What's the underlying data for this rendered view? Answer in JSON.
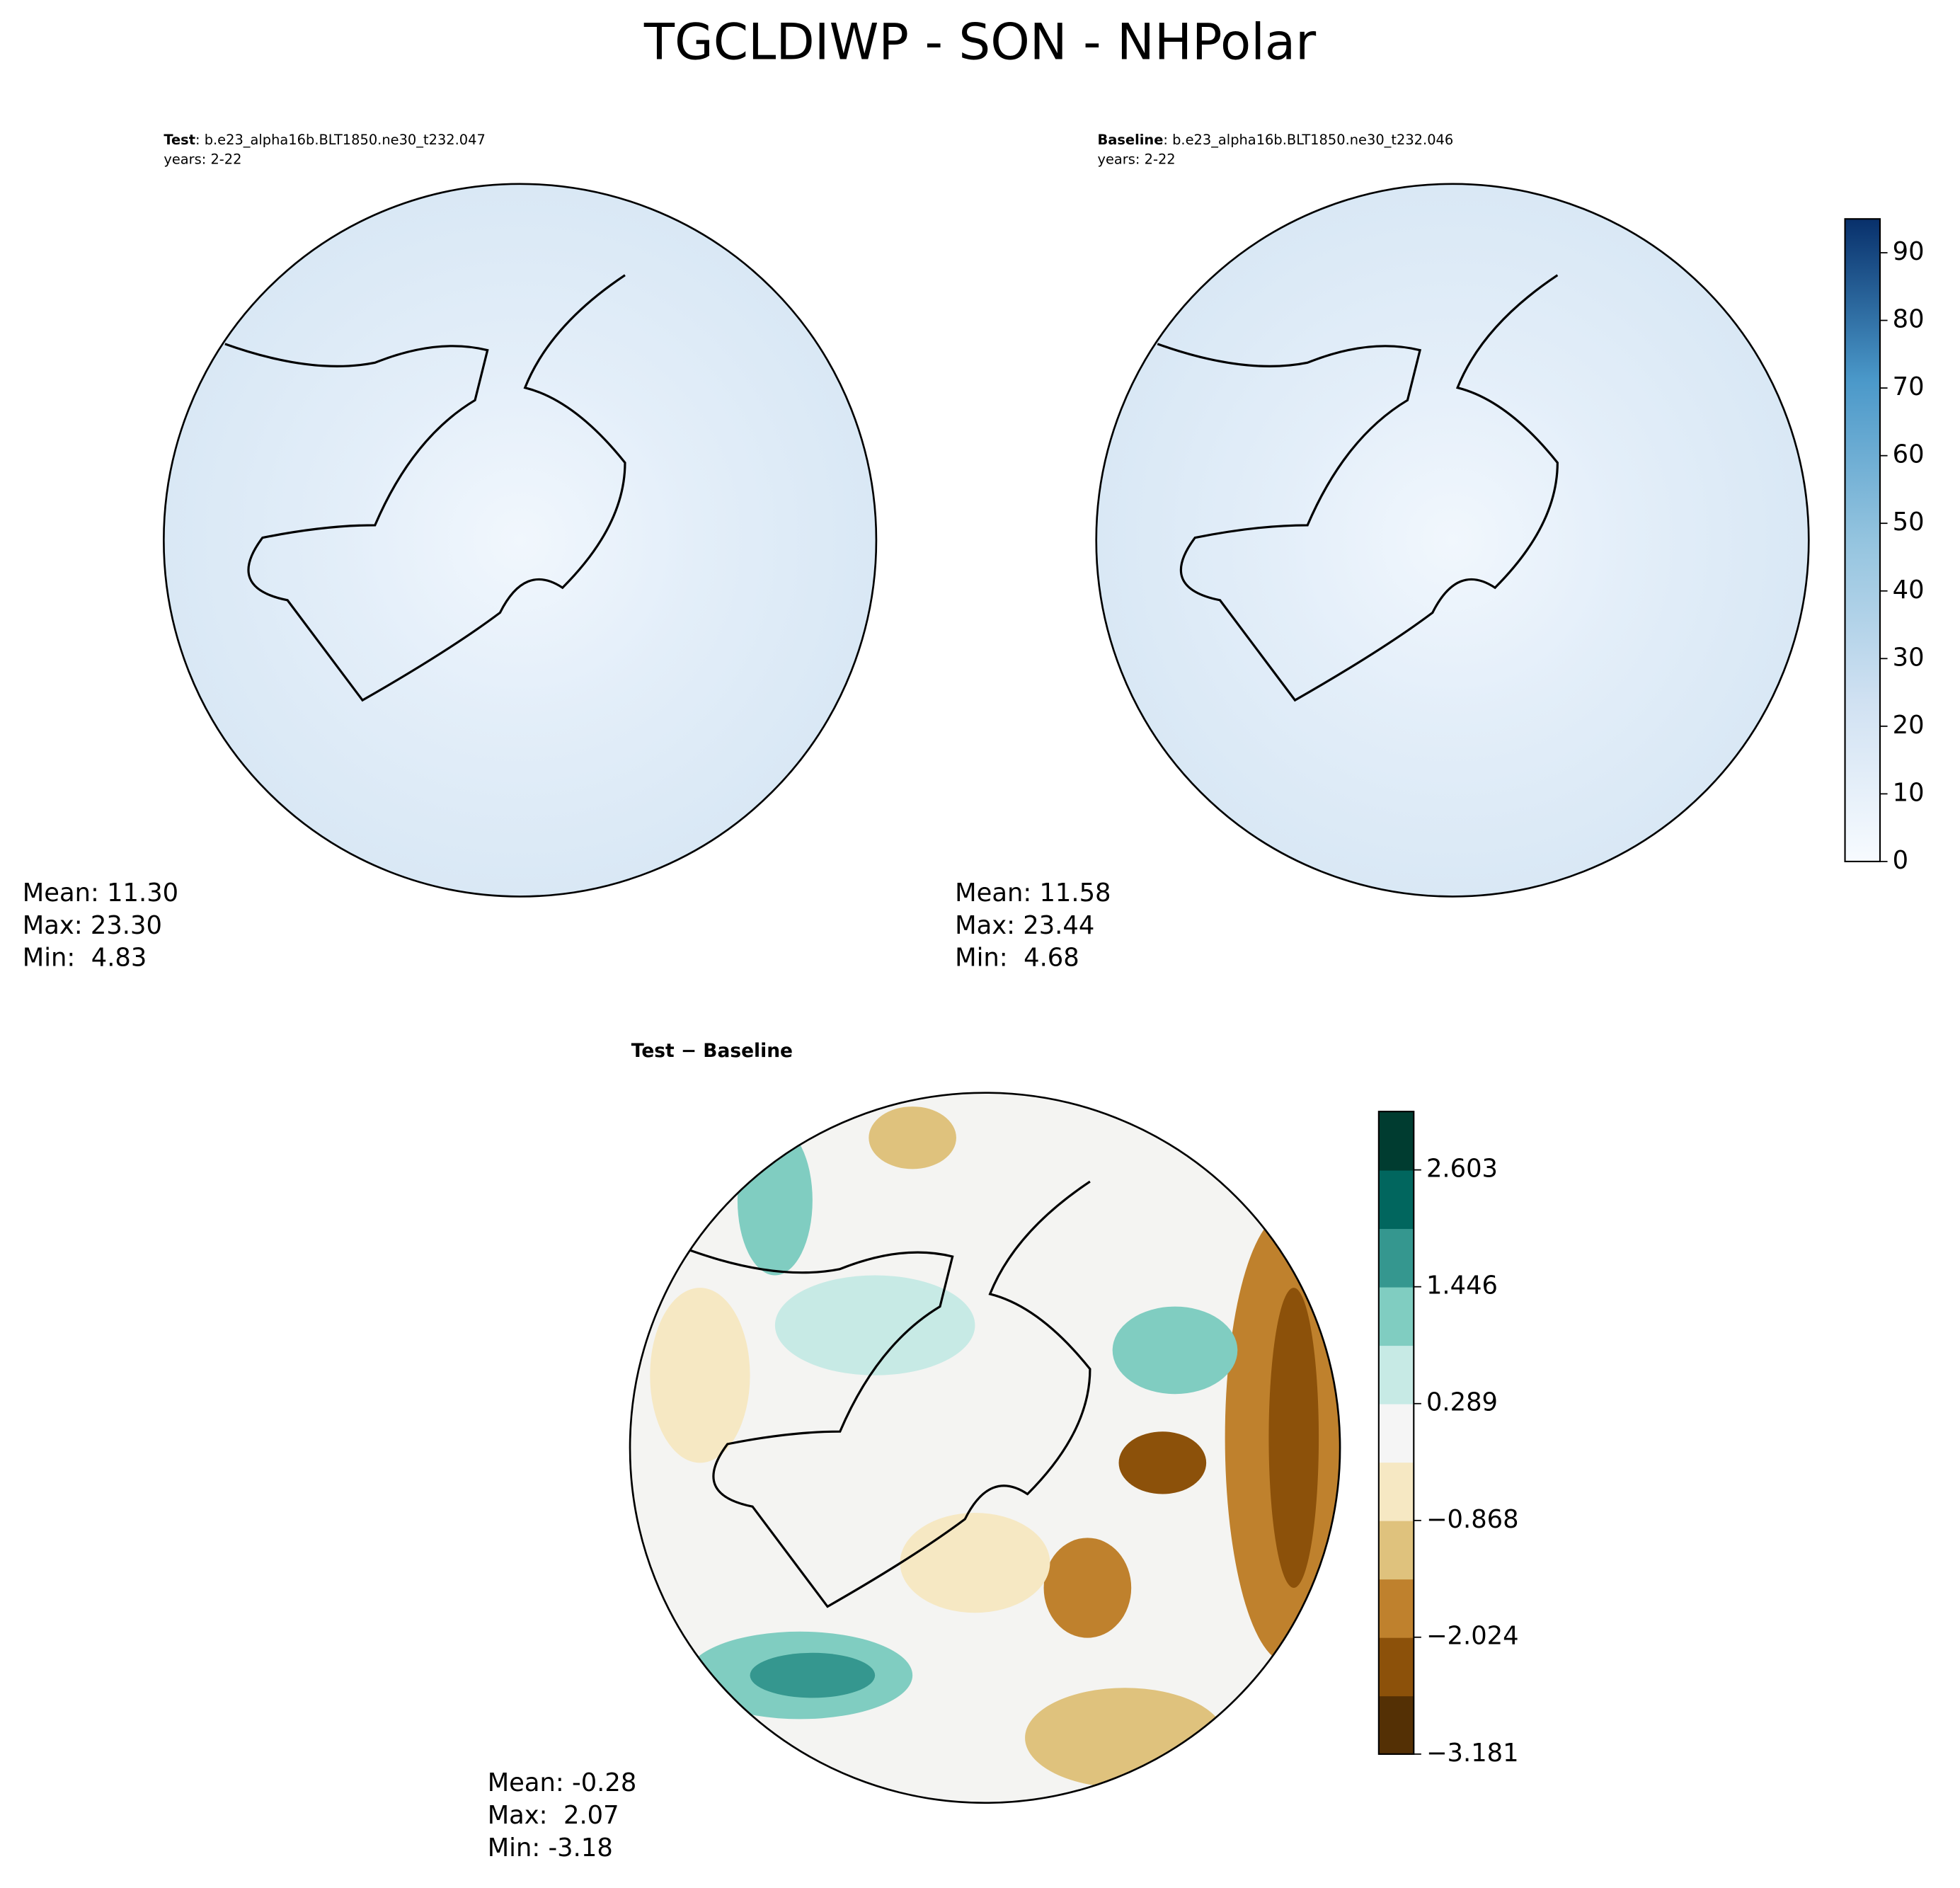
{
  "title": "TGCLDIWP - SON - NHPolar",
  "panels": [
    {
      "name": "Test",
      "case": ": b.e23_alpha16b.BLT1850.ne30_t232.047",
      "years": "years: 2-22",
      "stats": [
        "Mean: 11.30",
        "Max: 23.30",
        "Min:  4.83"
      ]
    },
    {
      "name": "Baseline",
      "case": ": b.e23_alpha16b.BLT1850.ne30_t232.046",
      "years": "years: 2-22",
      "stats": [
        "Mean: 11.58",
        "Max: 23.44",
        "Min:  4.68"
      ]
    },
    {
      "name": "Test − Baseline",
      "stats": [
        "Mean: -0.28",
        "Max:  2.07",
        "Min: -3.18"
      ]
    }
  ],
  "colorbars": [
    {
      "ylim": [
        0,
        95
      ],
      "yticks": [
        0,
        10,
        20,
        30,
        40,
        50,
        60,
        70,
        80,
        90
      ]
    },
    {
      "ylim": [
        -3.181,
        3.181
      ],
      "yticks": [
        {
          "value": 2.603,
          "label": "2.603"
        },
        {
          "value": 1.446,
          "label": "1.446"
        },
        {
          "value": 0.289,
          "label": "0.289"
        },
        {
          "value": -0.868,
          "label": "−0.868"
        },
        {
          "value": -2.024,
          "label": "−2.024"
        },
        {
          "value": -3.181,
          "label": "−3.181"
        }
      ]
    }
  ]
}
